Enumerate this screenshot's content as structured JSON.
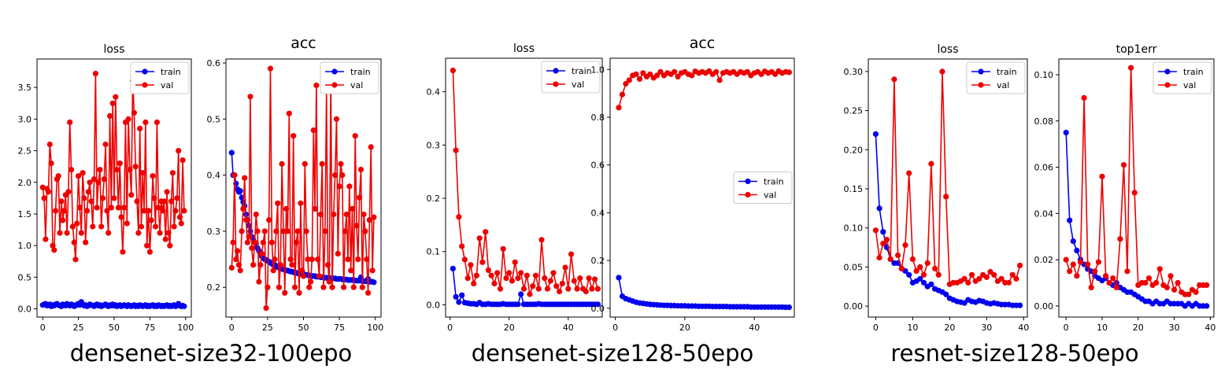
{
  "groups": [
    {
      "caption": "densenet-size32-100epo"
    },
    {
      "caption": "densenet-size128-50epo"
    },
    {
      "caption": "resnet-size128-50epo"
    }
  ],
  "colors": {
    "train": "#0000ee",
    "val": "#ee0000"
  },
  "chart_data": [
    {
      "type": "line",
      "title": "loss",
      "legend": "top-right",
      "grid": false,
      "xlim": [
        -4,
        104
      ],
      "ylim": [
        -0.13,
        3.95
      ],
      "xticks": [
        0,
        25,
        50,
        75,
        100
      ],
      "yticks": [
        0.0,
        0.5,
        1.0,
        1.5,
        2.0,
        2.5,
        3.0,
        3.5
      ],
      "yticklabels": [
        "0.0",
        "0.5",
        "1.0",
        "1.5",
        "2.0",
        "2.5",
        "3.0",
        "3.5"
      ],
      "series": [
        {
          "name": "train",
          "x_start": 0,
          "values": [
            0.06,
            0.07,
            0.08,
            0.05,
            0.06,
            0.07,
            0.04,
            0.06,
            0.05,
            0.07,
            0.08,
            0.06,
            0.05,
            0.04,
            0.07,
            0.06,
            0.05,
            0.08,
            0.06,
            0.05,
            0.07,
            0.06,
            0.04,
            0.05,
            0.07,
            0.08,
            0.06,
            0.11,
            0.07,
            0.05,
            0.06,
            0.04,
            0.05,
            0.07,
            0.06,
            0.05,
            0.04,
            0.06,
            0.07,
            0.05,
            0.06,
            0.04,
            0.05,
            0.06,
            0.07,
            0.05,
            0.04,
            0.06,
            0.05,
            0.07,
            0.05,
            0.06,
            0.04,
            0.05,
            0.06,
            0.04,
            0.05,
            0.06,
            0.05,
            0.04,
            0.06,
            0.05,
            0.04,
            0.05,
            0.06,
            0.04,
            0.05,
            0.04,
            0.06,
            0.05,
            0.04,
            0.05,
            0.06,
            0.04,
            0.05,
            0.04,
            0.05,
            0.06,
            0.04,
            0.05,
            0.04,
            0.06,
            0.05,
            0.04,
            0.05,
            0.04,
            0.05,
            0.06,
            0.04,
            0.05,
            0.04,
            0.05,
            0.06,
            0.04,
            0.05,
            0.08,
            0.05,
            0.04,
            0.05,
            0.04
          ]
        },
        {
          "name": "val",
          "x_start": 0,
          "values": [
            1.92,
            1.75,
            1.1,
            1.9,
            1.85,
            2.6,
            2.3,
            1.0,
            0.93,
            1.55,
            2.05,
            2.1,
            1.2,
            1.7,
            1.4,
            1.55,
            1.8,
            1.2,
            1.85,
            2.95,
            2.2,
            1.3,
            1.05,
            0.78,
            1.35,
            2.1,
            1.6,
            1.2,
            2.15,
            1.75,
            1.05,
            1.55,
            1.85,
            2.0,
            1.7,
            1.3,
            2.05,
            3.72,
            1.6,
            2.0,
            2.2,
            1.3,
            1.75,
            2.05,
            2.6,
            1.55,
            1.2,
            3.05,
            1.6,
            3.25,
            1.75,
            3.35,
            2.2,
            1.6,
            2.3,
            1.45,
            0.9,
            1.6,
            2.95,
            1.35,
            3.0,
            2.2,
            1.8,
            3.6,
            3.1,
            2.25,
            1.7,
            1.2,
            2.85,
            1.3,
            2.15,
            1.55,
            2.95,
            1.0,
            1.55,
            0.9,
            1.4,
            2.1,
            1.75,
            1.3,
            2.95,
            1.6,
            1.2,
            1.7,
            1.55,
            1.7,
            1.1,
            1.85,
            1.2,
            1.0,
            1.7,
            2.15,
            1.3,
            1.55,
            1.75,
            2.5,
            1.45,
            1.35,
            2.35,
            1.55
          ]
        }
      ]
    },
    {
      "type": "line",
      "title": "acc",
      "legend": "top-right",
      "grid": false,
      "xlim": [
        -4,
        104
      ],
      "ylim": [
        0.147,
        0.607
      ],
      "xticks": [
        0,
        25,
        50,
        75,
        100
      ],
      "yticks": [
        0.2,
        0.3,
        0.4,
        0.5,
        0.6
      ],
      "yticklabels": [
        "0.2",
        "0.3",
        "0.4",
        "0.5",
        "0.6"
      ],
      "series": [
        {
          "name": "train",
          "x_start": 0,
          "values": [
            0.44,
            0.4,
            0.4,
            0.385,
            0.375,
            0.37,
            0.372,
            0.36,
            0.352,
            0.345,
            0.33,
            0.32,
            0.31,
            0.3,
            0.29,
            0.285,
            0.28,
            0.278,
            0.27,
            0.265,
            0.26,
            0.255,
            0.252,
            0.25,
            0.249,
            0.247,
            0.246,
            0.244,
            0.242,
            0.24,
            0.24,
            0.238,
            0.236,
            0.235,
            0.234,
            0.233,
            0.232,
            0.231,
            0.23,
            0.23,
            0.229,
            0.228,
            0.228,
            0.227,
            0.226,
            0.226,
            0.225,
            0.225,
            0.224,
            0.224,
            0.223,
            0.223,
            0.222,
            0.222,
            0.221,
            0.221,
            0.22,
            0.22,
            0.22,
            0.219,
            0.219,
            0.219,
            0.218,
            0.218,
            0.218,
            0.217,
            0.217,
            0.217,
            0.217,
            0.216,
            0.216,
            0.216,
            0.216,
            0.215,
            0.215,
            0.215,
            0.215,
            0.214,
            0.214,
            0.214,
            0.214,
            0.213,
            0.213,
            0.213,
            0.213,
            0.213,
            0.212,
            0.212,
            0.212,
            0.212,
            0.218,
            0.211,
            0.211,
            0.211,
            0.211,
            0.215,
            0.21,
            0.21,
            0.21,
            0.209
          ]
        },
        {
          "name": "val",
          "x_start": 0,
          "values": [
            0.235,
            0.28,
            0.4,
            0.25,
            0.265,
            0.24,
            0.23,
            0.3,
            0.34,
            0.395,
            0.32,
            0.28,
            0.29,
            0.54,
            0.27,
            0.24,
            0.28,
            0.33,
            0.3,
            0.21,
            0.24,
            0.26,
            0.28,
            0.3,
            0.163,
            0.2,
            0.32,
            0.59,
            0.28,
            0.23,
            0.25,
            0.3,
            0.35,
            0.2,
            0.24,
            0.42,
            0.3,
            0.19,
            0.34,
            0.3,
            0.51,
            0.25,
            0.24,
            0.47,
            0.2,
            0.28,
            0.3,
            0.19,
            0.35,
            0.23,
            0.22,
            0.42,
            0.3,
            0.25,
            0.2,
            0.21,
            0.25,
            0.48,
            0.34,
            0.56,
            0.25,
            0.22,
            0.33,
            0.42,
            0.2,
            0.3,
            0.55,
            0.24,
            0.21,
            0.58,
            0.2,
            0.33,
            0.4,
            0.5,
            0.26,
            0.38,
            0.42,
            0.4,
            0.2,
            0.3,
            0.33,
            0.25,
            0.38,
            0.23,
            0.34,
            0.2,
            0.47,
            0.31,
            0.25,
            0.36,
            0.41,
            0.2,
            0.33,
            0.3,
            0.25,
            0.19,
            0.32,
            0.45,
            0.23,
            0.325
          ]
        }
      ]
    },
    {
      "type": "line",
      "title": "loss",
      "legend": "top-right",
      "grid": false,
      "xlim": [
        -1.5,
        51.5
      ],
      "ylim": [
        -0.023,
        0.463
      ],
      "xticks": [
        0,
        20,
        40
      ],
      "yticks": [
        0.0,
        0.1,
        0.2,
        0.3,
        0.4
      ],
      "yticklabels": [
        "0.0",
        "0.1",
        "0.2",
        "0.3",
        "0.4"
      ],
      "series": [
        {
          "name": "train",
          "x_start": 1,
          "values": [
            0.068,
            0.015,
            0.005,
            0.018,
            0.004,
            0.003,
            0.002,
            0.002,
            0.001,
            0.004,
            0.001,
            0.001,
            0.002,
            0.001,
            0.001,
            0.001,
            0.001,
            0.002,
            0.001,
            0.001,
            0.001,
            0.001,
            0.001,
            0.02,
            0.001,
            0.001,
            0.001,
            0.001,
            0.001,
            0.002,
            0.001,
            0.001,
            0.001,
            0.001,
            0.001,
            0.001,
            0.001,
            0.001,
            0.001,
            0.001,
            0.001,
            0.001,
            0.001,
            0.001,
            0.001,
            0.001,
            0.001,
            0.001,
            0.001,
            0.001
          ]
        },
        {
          "name": "val",
          "x_start": 1,
          "values": [
            0.44,
            0.29,
            0.165,
            0.11,
            0.085,
            0.05,
            0.075,
            0.04,
            0.055,
            0.125,
            0.08,
            0.137,
            0.065,
            0.055,
            0.04,
            0.06,
            0.03,
            0.105,
            0.05,
            0.06,
            0.045,
            0.08,
            0.05,
            0.06,
            0.03,
            0.055,
            0.02,
            0.035,
            0.055,
            0.03,
            0.122,
            0.05,
            0.03,
            0.045,
            0.06,
            0.035,
            0.025,
            0.04,
            0.07,
            0.03,
            0.095,
            0.045,
            0.03,
            0.05,
            0.03,
            0.025,
            0.05,
            0.03,
            0.048,
            0.03
          ]
        }
      ]
    },
    {
      "type": "line",
      "title": "acc",
      "legend": "center-right",
      "grid": false,
      "xlim": [
        -1.5,
        51.5
      ],
      "ylim": [
        -0.037,
        1.047
      ],
      "xticks": [
        0,
        20,
        40
      ],
      "yticks": [
        0.0,
        0.2,
        0.4,
        0.6,
        0.8,
        1.0
      ],
      "yticklabels": [
        "0.0",
        "0.2",
        "0.4",
        "0.6",
        "0.8",
        "1.0"
      ],
      "series": [
        {
          "name": "train",
          "x_start": 1,
          "values": [
            0.128,
            0.05,
            0.04,
            0.035,
            0.03,
            0.025,
            0.022,
            0.02,
            0.018,
            0.016,
            0.015,
            0.014,
            0.013,
            0.012,
            0.012,
            0.011,
            0.011,
            0.01,
            0.01,
            0.01,
            0.009,
            0.009,
            0.009,
            0.008,
            0.008,
            0.008,
            0.008,
            0.007,
            0.007,
            0.007,
            0.007,
            0.007,
            0.006,
            0.006,
            0.006,
            0.006,
            0.006,
            0.006,
            0.005,
            0.005,
            0.005,
            0.005,
            0.005,
            0.005,
            0.005,
            0.005,
            0.005,
            0.005,
            0.004,
            0.004
          ]
        },
        {
          "name": "val",
          "x_start": 1,
          "values": [
            0.84,
            0.895,
            0.94,
            0.955,
            0.975,
            0.98,
            0.96,
            0.985,
            0.97,
            0.98,
            0.965,
            0.975,
            0.99,
            0.975,
            0.985,
            0.98,
            0.99,
            0.97,
            0.985,
            0.99,
            0.98,
            0.975,
            0.992,
            0.985,
            0.99,
            0.985,
            0.993,
            0.98,
            0.99,
            0.955,
            0.985,
            0.99,
            0.985,
            0.99,
            0.98,
            0.99,
            0.985,
            0.99,
            0.975,
            0.985,
            0.99,
            0.98,
            0.992,
            0.985,
            0.99,
            0.98,
            0.993,
            0.985,
            0.99,
            0.988
          ]
        }
      ]
    },
    {
      "type": "line",
      "title": "loss",
      "legend": "top-right",
      "grid": false,
      "xlim": [
        -2,
        41
      ],
      "ylim": [
        -0.014,
        0.316
      ],
      "xticks": [
        0,
        10,
        20,
        30,
        40
      ],
      "yticks": [
        0.0,
        0.05,
        0.1,
        0.15,
        0.2,
        0.25,
        0.3
      ],
      "yticklabels": [
        "0.00",
        "0.05",
        "0.10",
        "0.15",
        "0.20",
        "0.25",
        "0.30"
      ],
      "series": [
        {
          "name": "train",
          "x_start": 0,
          "values": [
            0.22,
            0.125,
            0.095,
            0.075,
            0.06,
            0.055,
            0.055,
            0.048,
            0.045,
            0.04,
            0.03,
            0.032,
            0.035,
            0.03,
            0.025,
            0.028,
            0.022,
            0.02,
            0.018,
            0.015,
            0.01,
            0.008,
            0.006,
            0.005,
            0.004,
            0.008,
            0.006,
            0.005,
            0.007,
            0.006,
            0.004,
            0.003,
            0.004,
            0.003,
            0.002,
            0.002,
            0.002,
            0.001,
            0.001,
            0.001
          ]
        },
        {
          "name": "val",
          "x_start": 0,
          "values": [
            0.097,
            0.062,
            0.08,
            0.085,
            0.06,
            0.29,
            0.065,
            0.048,
            0.078,
            0.17,
            0.06,
            0.045,
            0.05,
            0.04,
            0.055,
            0.182,
            0.048,
            0.04,
            0.3,
            0.14,
            0.028,
            0.03,
            0.03,
            0.032,
            0.035,
            0.03,
            0.04,
            0.032,
            0.035,
            0.04,
            0.037,
            0.044,
            0.04,
            0.032,
            0.035,
            0.03,
            0.03,
            0.04,
            0.035,
            0.052
          ]
        }
      ]
    },
    {
      "type": "line",
      "title": "top1err",
      "legend": "top-right",
      "grid": false,
      "xlim": [
        -2,
        41
      ],
      "ylim": [
        -0.0048,
        0.1068
      ],
      "xticks": [
        0,
        10,
        20,
        30,
        40
      ],
      "yticks": [
        0.0,
        0.02,
        0.04,
        0.06,
        0.08,
        0.1
      ],
      "yticklabels": [
        "0.00",
        "0.02",
        "0.04",
        "0.06",
        "0.08",
        "0.10"
      ],
      "series": [
        {
          "name": "train",
          "x_start": 0,
          "values": [
            0.075,
            0.037,
            0.028,
            0.024,
            0.02,
            0.018,
            0.016,
            0.015,
            0.013,
            0.012,
            0.011,
            0.012,
            0.01,
            0.009,
            0.01,
            0.008,
            0.007,
            0.006,
            0.006,
            0.005,
            0.004,
            0.003,
            0.002,
            0.002,
            0.001,
            0.002,
            0.001,
            0.001,
            0.002,
            0.001,
            0.001,
            0.001,
            0.001,
            0.0,
            0.001,
            0.0,
            0.001,
            0.0,
            0.0,
            0.0
          ]
        },
        {
          "name": "val",
          "x_start": 0,
          "values": [
            0.02,
            0.015,
            0.018,
            0.013,
            0.019,
            0.09,
            0.018,
            0.008,
            0.015,
            0.019,
            0.056,
            0.013,
            0.01,
            0.012,
            0.008,
            0.029,
            0.061,
            0.015,
            0.103,
            0.049,
            0.009,
            0.01,
            0.01,
            0.012,
            0.009,
            0.01,
            0.016,
            0.009,
            0.008,
            0.013,
            0.007,
            0.01,
            0.006,
            0.005,
            0.005,
            0.007,
            0.006,
            0.009,
            0.009,
            0.009
          ]
        }
      ]
    }
  ]
}
